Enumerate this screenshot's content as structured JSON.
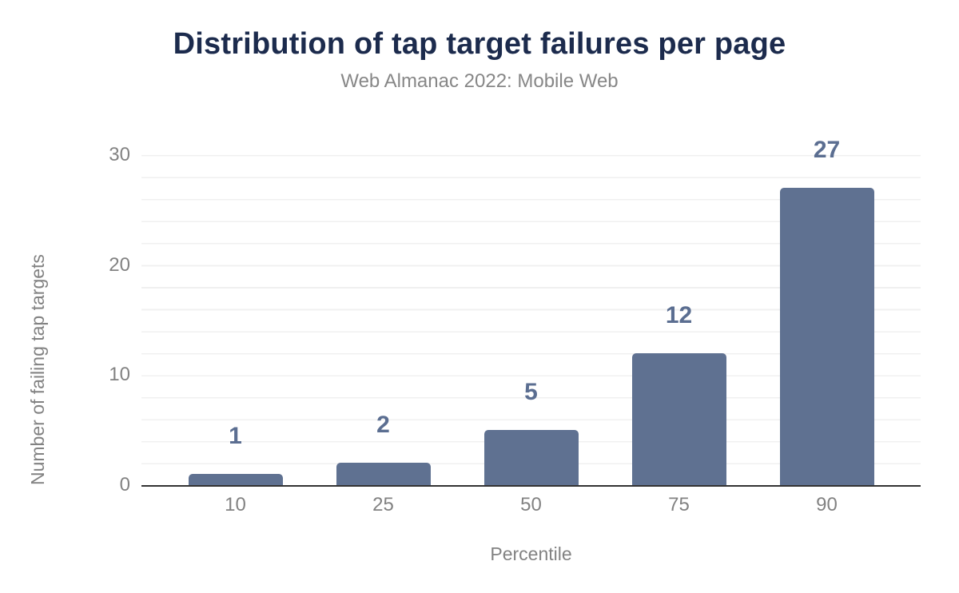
{
  "header": {
    "title": "Distribution of tap target failures per page",
    "subtitle": "Web Almanac 2022: Mobile Web"
  },
  "chart_data": {
    "type": "bar",
    "title": "Distribution of tap target failures per page",
    "subtitle": "Web Almanac 2022: Mobile Web",
    "categories": [
      "10",
      "25",
      "50",
      "75",
      "90"
    ],
    "values": [
      1,
      2,
      5,
      12,
      27
    ],
    "xlabel": "Percentile",
    "ylabel": "Number of failing tap targets",
    "ylim": [
      0,
      30
    ],
    "yticks": [
      0,
      10,
      20,
      30
    ],
    "grid": "horizontal minor gridlines every 2 units, no vertical grid",
    "legend_position": "none",
    "colors": {
      "bar": "#5f7191",
      "value_label": "#5b6e91",
      "title": "#1c2b4d",
      "subtitle": "#878787",
      "axis_text": "#828282",
      "axis_line": "#333333",
      "gridline": "#f0f0f0",
      "background": "#ffffff"
    }
  }
}
